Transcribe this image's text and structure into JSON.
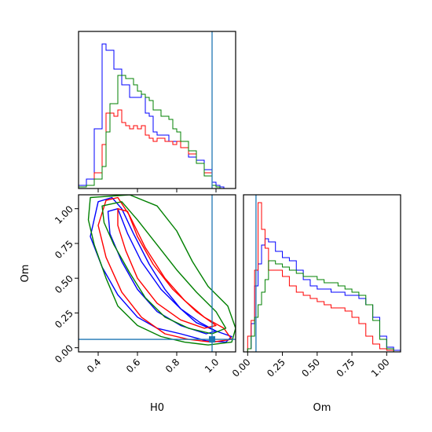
{
  "chart_data": [
    {
      "id": "hist_h0",
      "type": "histogram",
      "xlim": [
        0.3,
        1.1
      ],
      "ylim": [
        0,
        1.0
      ],
      "xticks": [
        0.4,
        0.6,
        0.8,
        1.0
      ],
      "show_xtick_labels": false,
      "truth_x": 0.98,
      "series": [
        {
          "color": "#0000ff",
          "bins": [
            0.3,
            0.34,
            0.38,
            0.42,
            0.44,
            0.46,
            0.48,
            0.5,
            0.52,
            0.54,
            0.56,
            0.58,
            0.6,
            0.62,
            0.64,
            0.66,
            0.68,
            0.7,
            0.72,
            0.74,
            0.76,
            0.78,
            0.8,
            0.82,
            0.84,
            0.86,
            0.88,
            0.9,
            0.92,
            0.94,
            0.96,
            0.98,
            1.0,
            1.02,
            1.04
          ],
          "values": [
            0.02,
            0.06,
            0.38,
            0.92,
            0.88,
            0.88,
            0.76,
            0.76,
            0.66,
            0.66,
            0.58,
            0.58,
            0.58,
            0.6,
            0.48,
            0.46,
            0.36,
            0.34,
            0.34,
            0.34,
            0.3,
            0.3,
            0.3,
            0.26,
            0.26,
            0.2,
            0.2,
            0.18,
            0.18,
            0.12,
            0.12,
            0.04,
            0.02,
            0.01
          ]
        },
        {
          "color": "#ff0000",
          "bins": [
            0.3,
            0.34,
            0.38,
            0.42,
            0.44,
            0.46,
            0.48,
            0.5,
            0.52,
            0.54,
            0.56,
            0.58,
            0.6,
            0.62,
            0.64,
            0.66,
            0.68,
            0.7,
            0.72,
            0.74,
            0.76,
            0.78,
            0.8,
            0.82,
            0.84,
            0.86,
            0.88,
            0.9,
            0.92,
            0.94,
            0.96,
            0.98,
            1.0,
            1.02,
            1.04
          ],
          "values": [
            0.01,
            0.02,
            0.1,
            0.28,
            0.48,
            0.48,
            0.46,
            0.5,
            0.42,
            0.4,
            0.38,
            0.4,
            0.38,
            0.4,
            0.34,
            0.32,
            0.3,
            0.32,
            0.32,
            0.3,
            0.3,
            0.28,
            0.3,
            0.26,
            0.26,
            0.22,
            0.22,
            0.16,
            0.16,
            0.1,
            0.1,
            0.02,
            0.01,
            0.0
          ]
        },
        {
          "color": "#008000",
          "bins": [
            0.3,
            0.34,
            0.38,
            0.42,
            0.44,
            0.46,
            0.48,
            0.5,
            0.52,
            0.54,
            0.56,
            0.58,
            0.6,
            0.62,
            0.64,
            0.66,
            0.68,
            0.7,
            0.72,
            0.74,
            0.76,
            0.78,
            0.8,
            0.82,
            0.84,
            0.86,
            0.88,
            0.9,
            0.92,
            0.94,
            0.96,
            0.98,
            1.0,
            1.02,
            1.04
          ],
          "values": [
            0.01,
            0.02,
            0.06,
            0.14,
            0.36,
            0.54,
            0.54,
            0.72,
            0.72,
            0.7,
            0.7,
            0.66,
            0.62,
            0.6,
            0.58,
            0.56,
            0.5,
            0.5,
            0.46,
            0.46,
            0.44,
            0.38,
            0.36,
            0.3,
            0.3,
            0.24,
            0.24,
            0.16,
            0.16,
            0.08,
            0.08,
            0.02,
            0.01,
            0.0
          ]
        }
      ]
    },
    {
      "id": "contour_h0_om",
      "type": "contour",
      "xlabel": "H0",
      "ylabel": "Om",
      "xlim": [
        0.3,
        1.1
      ],
      "ylim": [
        -0.03,
        1.1
      ],
      "xticks": [
        0.4,
        0.6,
        0.8,
        1.0
      ],
      "xtick_labels": [
        "0.4",
        "0.6",
        "0.8",
        "1.0"
      ],
      "yticks": [
        0.0,
        0.25,
        0.5,
        0.75,
        1.0
      ],
      "ytick_labels": [
        "0.00",
        "0.25",
        "0.50",
        "0.75",
        "1.00"
      ],
      "truth_x": 0.98,
      "truth_y": 0.06,
      "contours": [
        {
          "color": "#0000ff",
          "points": [
            [
              0.4,
              1.05
            ],
            [
              0.47,
              1.08
            ],
            [
              0.52,
              1.0
            ],
            [
              0.58,
              0.82
            ],
            [
              0.66,
              0.6
            ],
            [
              0.74,
              0.42
            ],
            [
              0.82,
              0.28
            ],
            [
              0.9,
              0.18
            ],
            [
              1.0,
              0.12
            ],
            [
              1.08,
              0.08
            ],
            [
              1.05,
              0.04
            ],
            [
              0.95,
              0.05
            ],
            [
              0.82,
              0.1
            ],
            [
              0.7,
              0.14
            ],
            [
              0.6,
              0.22
            ],
            [
              0.5,
              0.38
            ],
            [
              0.42,
              0.58
            ],
            [
              0.36,
              0.8
            ],
            [
              0.4,
              1.05
            ]
          ]
        },
        {
          "color": "#0000ff",
          "points": [
            [
              0.45,
              0.98
            ],
            [
              0.5,
              1.0
            ],
            [
              0.55,
              0.82
            ],
            [
              0.62,
              0.62
            ],
            [
              0.72,
              0.42
            ],
            [
              0.82,
              0.28
            ],
            [
              0.92,
              0.18
            ],
            [
              1.0,
              0.12
            ],
            [
              0.95,
              0.1
            ],
            [
              0.82,
              0.16
            ],
            [
              0.7,
              0.26
            ],
            [
              0.6,
              0.42
            ],
            [
              0.52,
              0.62
            ],
            [
              0.46,
              0.82
            ],
            [
              0.45,
              0.98
            ]
          ]
        },
        {
          "color": "#ff0000",
          "points": [
            [
              0.44,
              1.06
            ],
            [
              0.5,
              1.08
            ],
            [
              0.56,
              0.95
            ],
            [
              0.64,
              0.72
            ],
            [
              0.74,
              0.5
            ],
            [
              0.84,
              0.34
            ],
            [
              0.94,
              0.22
            ],
            [
              1.04,
              0.14
            ],
            [
              1.08,
              0.06
            ],
            [
              0.98,
              0.04
            ],
            [
              0.86,
              0.06
            ],
            [
              0.74,
              0.1
            ],
            [
              0.62,
              0.22
            ],
            [
              0.52,
              0.4
            ],
            [
              0.44,
              0.65
            ],
            [
              0.4,
              0.88
            ],
            [
              0.44,
              1.06
            ]
          ]
        },
        {
          "color": "#ff0000",
          "points": [
            [
              0.5,
              1.0
            ],
            [
              0.55,
              0.98
            ],
            [
              0.6,
              0.8
            ],
            [
              0.68,
              0.6
            ],
            [
              0.78,
              0.42
            ],
            [
              0.9,
              0.26
            ],
            [
              1.0,
              0.16
            ],
            [
              0.94,
              0.14
            ],
            [
              0.82,
              0.2
            ],
            [
              0.7,
              0.32
            ],
            [
              0.6,
              0.5
            ],
            [
              0.54,
              0.7
            ],
            [
              0.5,
              0.88
            ],
            [
              0.5,
              1.0
            ]
          ]
        },
        {
          "color": "#008000",
          "points": [
            [
              0.36,
              1.08
            ],
            [
              0.56,
              1.1
            ],
            [
              0.7,
              1.02
            ],
            [
              0.8,
              0.84
            ],
            [
              0.88,
              0.62
            ],
            [
              0.96,
              0.44
            ],
            [
              1.06,
              0.3
            ],
            [
              1.1,
              0.14
            ],
            [
              1.08,
              0.04
            ],
            [
              0.96,
              0.02
            ],
            [
              0.84,
              0.04
            ],
            [
              0.72,
              0.08
            ],
            [
              0.6,
              0.16
            ],
            [
              0.5,
              0.3
            ],
            [
              0.44,
              0.5
            ],
            [
              0.38,
              0.74
            ],
            [
              0.35,
              0.92
            ],
            [
              0.36,
              1.08
            ]
          ]
        },
        {
          "color": "#008000",
          "points": [
            [
              0.42,
              1.02
            ],
            [
              0.52,
              1.05
            ],
            [
              0.6,
              0.92
            ],
            [
              0.7,
              0.74
            ],
            [
              0.8,
              0.56
            ],
            [
              0.9,
              0.4
            ],
            [
              1.0,
              0.26
            ],
            [
              1.05,
              0.14
            ],
            [
              0.98,
              0.1
            ],
            [
              0.86,
              0.14
            ],
            [
              0.74,
              0.22
            ],
            [
              0.64,
              0.36
            ],
            [
              0.56,
              0.54
            ],
            [
              0.48,
              0.74
            ],
            [
              0.43,
              0.9
            ],
            [
              0.42,
              1.02
            ]
          ]
        }
      ]
    },
    {
      "id": "hist_om",
      "type": "histogram",
      "xlabel": "Om",
      "xlim": [
        -0.03,
        1.1
      ],
      "ylim": [
        0,
        1.0
      ],
      "xticks": [
        0.0,
        0.25,
        0.5,
        0.75,
        1.0
      ],
      "xtick_labels": [
        "0.00",
        "0.25",
        "0.50",
        "0.75",
        "1.00"
      ],
      "truth_x": 0.06,
      "series": [
        {
          "color": "#0000ff",
          "bins": [
            0.0,
            0.025,
            0.05,
            0.075,
            0.1,
            0.125,
            0.15,
            0.2,
            0.25,
            0.3,
            0.35,
            0.4,
            0.45,
            0.5,
            0.55,
            0.6,
            0.65,
            0.7,
            0.75,
            0.8,
            0.85,
            0.9,
            0.95,
            1.0,
            1.05,
            1.1
          ],
          "values": [
            0.02,
            0.18,
            0.42,
            0.56,
            0.68,
            0.72,
            0.7,
            0.64,
            0.6,
            0.58,
            0.52,
            0.46,
            0.42,
            0.4,
            0.4,
            0.38,
            0.38,
            0.36,
            0.36,
            0.34,
            0.3,
            0.22,
            0.1,
            0.03,
            0.01
          ]
        },
        {
          "color": "#ff0000",
          "bins": [
            0.0,
            0.025,
            0.05,
            0.075,
            0.1,
            0.125,
            0.15,
            0.2,
            0.25,
            0.3,
            0.35,
            0.4,
            0.45,
            0.5,
            0.55,
            0.6,
            0.65,
            0.7,
            0.75,
            0.8,
            0.85,
            0.9,
            0.95,
            1.0,
            1.05,
            1.1
          ],
          "values": [
            0.1,
            0.2,
            0.52,
            0.95,
            0.78,
            0.66,
            0.52,
            0.52,
            0.48,
            0.42,
            0.38,
            0.36,
            0.34,
            0.32,
            0.3,
            0.28,
            0.28,
            0.26,
            0.22,
            0.18,
            0.1,
            0.05,
            0.02,
            0.01,
            0.0
          ]
        },
        {
          "color": "#008000",
          "bins": [
            0.0,
            0.025,
            0.05,
            0.075,
            0.1,
            0.125,
            0.15,
            0.2,
            0.25,
            0.3,
            0.35,
            0.4,
            0.45,
            0.5,
            0.55,
            0.6,
            0.65,
            0.7,
            0.75,
            0.8,
            0.85,
            0.9,
            0.95,
            1.0,
            1.05,
            1.1
          ],
          "values": [
            0.02,
            0.1,
            0.22,
            0.3,
            0.38,
            0.46,
            0.58,
            0.56,
            0.54,
            0.52,
            0.5,
            0.48,
            0.48,
            0.46,
            0.44,
            0.44,
            0.42,
            0.4,
            0.38,
            0.36,
            0.3,
            0.2,
            0.08,
            0.02,
            0.0
          ]
        }
      ]
    }
  ]
}
